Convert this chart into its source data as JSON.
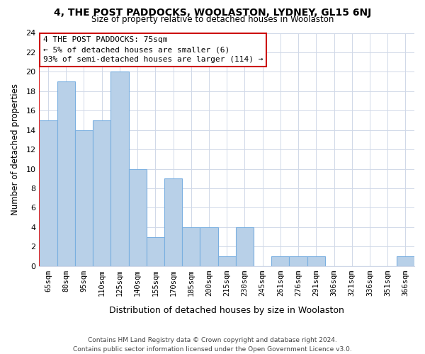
{
  "title": "4, THE POST PADDOCKS, WOOLASTON, LYDNEY, GL15 6NJ",
  "subtitle": "Size of property relative to detached houses in Woolaston",
  "xlabel": "Distribution of detached houses by size in Woolaston",
  "ylabel": "Number of detached properties",
  "bins": [
    "65sqm",
    "80sqm",
    "95sqm",
    "110sqm",
    "125sqm",
    "140sqm",
    "155sqm",
    "170sqm",
    "185sqm",
    "200sqm",
    "215sqm",
    "230sqm",
    "245sqm",
    "261sqm",
    "276sqm",
    "291sqm",
    "306sqm",
    "321sqm",
    "336sqm",
    "351sqm",
    "366sqm"
  ],
  "values": [
    15,
    19,
    14,
    15,
    20,
    10,
    3,
    9,
    4,
    4,
    1,
    4,
    0,
    1,
    1,
    1,
    0,
    0,
    0,
    0,
    1
  ],
  "bar_color": "#b8d0e8",
  "bar_edge_color": "#7aafe0",
  "vline_color": "#dd2222",
  "ylim": [
    0,
    24
  ],
  "yticks": [
    0,
    2,
    4,
    6,
    8,
    10,
    12,
    14,
    16,
    18,
    20,
    22,
    24
  ],
  "annotation_line1": "4 THE POST PADDOCKS: 75sqm",
  "annotation_line2": "← 5% of detached houses are smaller (6)",
  "annotation_line3": "93% of semi-detached houses are larger (114) →",
  "annotation_box_color": "#ffffff",
  "annotation_box_edge": "#cc0000",
  "footer_line1": "Contains HM Land Registry data © Crown copyright and database right 2024.",
  "footer_line2": "Contains public sector information licensed under the Open Government Licence v3.0.",
  "background_color": "#ffffff",
  "grid_color": "#d0d8e8"
}
